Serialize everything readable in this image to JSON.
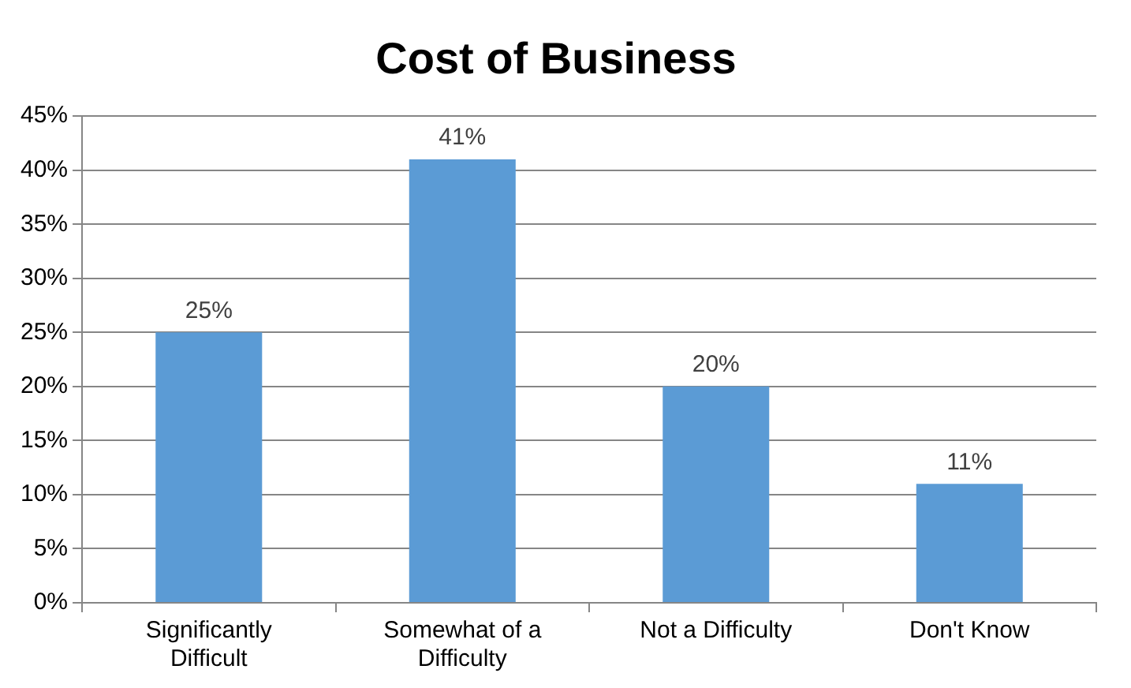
{
  "chart_data": {
    "type": "bar",
    "title": "Cost of Business",
    "categories": [
      "Significantly Difficult",
      "Somewhat of a Difficulty",
      "Not a Difficulty",
      "Don't Know"
    ],
    "values": [
      25,
      41,
      20,
      11
    ],
    "color": "#5b9bd5",
    "value_labels": [
      "25%",
      "41%",
      "20%",
      "11%"
    ],
    "ylim": [
      0,
      45
    ],
    "yticks": [
      {
        "value": 0,
        "label": "0%"
      },
      {
        "value": 5,
        "label": "5%"
      },
      {
        "value": 10,
        "label": "10%"
      },
      {
        "value": 15,
        "label": "15%"
      },
      {
        "value": 20,
        "label": "20%"
      },
      {
        "value": 25,
        "label": "25%"
      },
      {
        "value": 30,
        "label": "30%"
      },
      {
        "value": 35,
        "label": "35%"
      },
      {
        "value": 40,
        "label": "40%"
      },
      {
        "value": 45,
        "label": "45%"
      }
    ],
    "grid": "y",
    "legend": false
  }
}
